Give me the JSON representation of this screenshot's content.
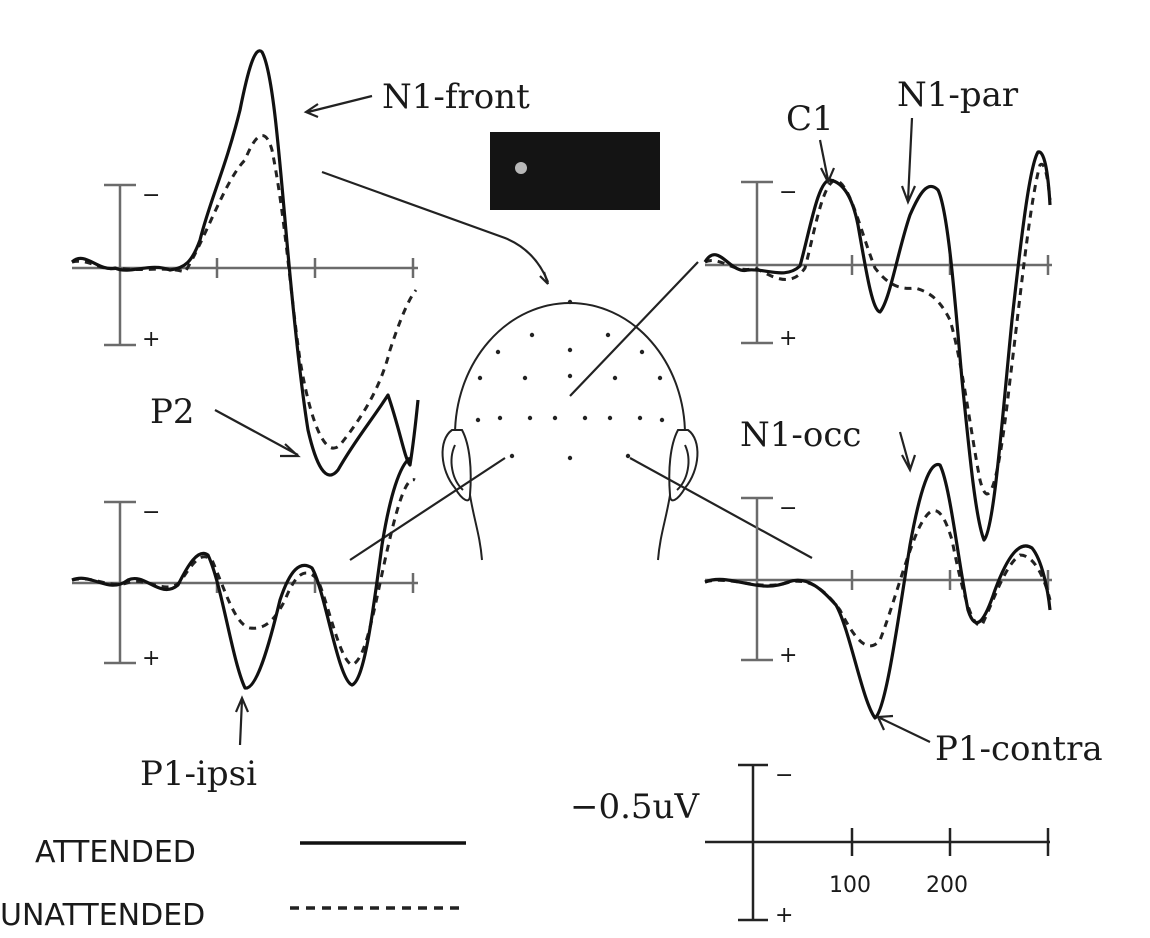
{
  "labels": {
    "n1_front": "N1-front",
    "c1": "C1",
    "n1_par": "N1-par",
    "p2": "P2",
    "n1_occ": "N1-occ",
    "p1_ipsi": "P1-ipsi",
    "p1_contra": "P1-contra"
  },
  "scale_bar": {
    "amplitude": "−0.5uV",
    "neg_sign": "−",
    "pos_sign": "+",
    "ticks": [
      "100",
      "200"
    ]
  },
  "legend": {
    "attended": "ATTENDED",
    "unattended": "UNATTENDED"
  },
  "polarity": {
    "neg": "−",
    "pos": "+"
  },
  "colors": {
    "ink": "#111111",
    "axis": "#6b6b6b",
    "stimulus_panel": "#141414",
    "stimulus_dot": "#b8b8b8"
  }
}
